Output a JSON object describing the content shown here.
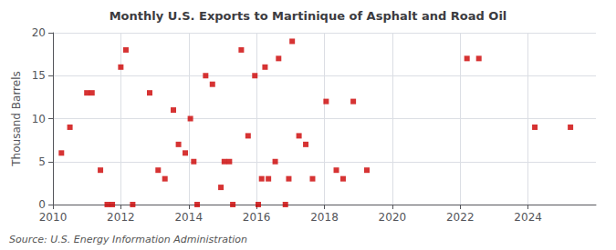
{
  "chart_data": {
    "type": "scatter",
    "title": "Monthly U.S. Exports to Martinique of Asphalt and Road Oil",
    "y_label": "Thousand Barrels",
    "source": "Source: U.S. Energy Information Administration",
    "color": "#cc0000",
    "marker": "square",
    "grid": true,
    "xlim": [
      2010,
      2026
    ],
    "ylim": [
      0,
      20
    ],
    "xticks": [
      2010,
      2012,
      2014,
      2016,
      2018,
      2020,
      2022,
      2024
    ],
    "yticks": [
      0,
      5,
      10,
      15,
      20
    ],
    "x": [
      2010.25,
      2010.5,
      2011.0,
      2011.15,
      2011.4,
      2011.6,
      2011.75,
      2012.0,
      2012.15,
      2012.35,
      2012.85,
      2013.1,
      2013.3,
      2013.55,
      2013.7,
      2013.9,
      2014.05,
      2014.15,
      2014.25,
      2014.5,
      2014.7,
      2014.95,
      2015.05,
      2015.2,
      2015.3,
      2015.55,
      2015.75,
      2015.95,
      2016.05,
      2016.15,
      2016.25,
      2016.35,
      2016.55,
      2016.65,
      2016.85,
      2016.95,
      2017.05,
      2017.25,
      2017.45,
      2017.65,
      2018.05,
      2018.35,
      2018.55,
      2018.85,
      2019.25,
      2022.2,
      2022.55,
      2024.2,
      2025.25
    ],
    "values": [
      6,
      9,
      13,
      13,
      4,
      0,
      0,
      16,
      18,
      0,
      13,
      4,
      3,
      11,
      7,
      6,
      10,
      5,
      0,
      15,
      14,
      2,
      5,
      5,
      0,
      18,
      8,
      15,
      0,
      3,
      16,
      3,
      5,
      17,
      0,
      3,
      19,
      8,
      7,
      3,
      12,
      4,
      3,
      12,
      4,
      17,
      17,
      9,
      9
    ]
  }
}
